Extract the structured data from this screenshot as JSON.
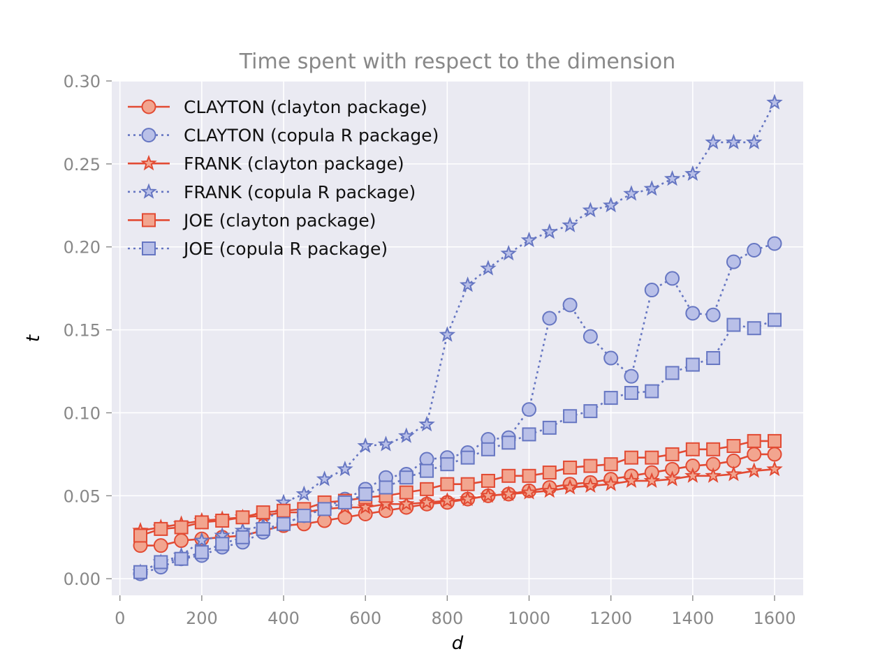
{
  "chart_data": {
    "type": "line",
    "title": "Time spent with respect to the dimension",
    "xlabel": "d",
    "ylabel": "t",
    "xlim": [
      -20,
      1670
    ],
    "ylim": [
      -0.01,
      0.3
    ],
    "x_ticks": [
      0,
      200,
      400,
      600,
      800,
      1000,
      1200,
      1400,
      1600
    ],
    "x_tick_labels": [
      "0",
      "200",
      "400",
      "600",
      "800",
      "1000",
      "1200",
      "1400",
      "1600"
    ],
    "y_ticks": [
      0.0,
      0.05,
      0.1,
      0.15,
      0.2,
      0.25,
      0.3
    ],
    "y_tick_labels": [
      "0.00",
      "0.05",
      "0.10",
      "0.15",
      "0.20",
      "0.25",
      "0.30"
    ],
    "grid": true,
    "legend_position": "top-left",
    "x": [
      50,
      100,
      150,
      200,
      250,
      300,
      350,
      400,
      450,
      500,
      550,
      600,
      650,
      700,
      750,
      800,
      850,
      900,
      950,
      1000,
      1050,
      1100,
      1150,
      1200,
      1250,
      1300,
      1350,
      1400,
      1450,
      1500,
      1550,
      1600
    ],
    "series": [
      {
        "name": "CLAYTON (clayton package)",
        "marker": "circle",
        "linestyle": "solid",
        "color": "#E24A33",
        "fill": "#F2A58F",
        "values": [
          0.02,
          0.02,
          0.023,
          0.024,
          0.025,
          0.026,
          0.029,
          0.032,
          0.033,
          0.035,
          0.037,
          0.039,
          0.041,
          0.043,
          0.045,
          0.046,
          0.048,
          0.05,
          0.051,
          0.053,
          0.055,
          0.057,
          0.058,
          0.06,
          0.062,
          0.064,
          0.066,
          0.068,
          0.069,
          0.071,
          0.075,
          0.075
        ]
      },
      {
        "name": "CLAYTON (copula R package)",
        "marker": "circle",
        "linestyle": "dotted",
        "color": "#6676C2",
        "fill": "#B9C0E8",
        "values": [
          0.003,
          0.007,
          0.012,
          0.014,
          0.019,
          0.022,
          0.028,
          0.033,
          0.038,
          0.043,
          0.048,
          0.054,
          0.061,
          0.063,
          0.072,
          0.073,
          0.076,
          0.084,
          0.085,
          0.102,
          0.157,
          0.165,
          0.146,
          0.133,
          0.122,
          0.174,
          0.181,
          0.16,
          0.159,
          0.191,
          0.198,
          0.202
        ]
      },
      {
        "name": "FRANK (clayton package)",
        "marker": "star",
        "linestyle": "solid",
        "color": "#E24A33",
        "fill": "#F2A58F",
        "values": [
          0.029,
          0.031,
          0.033,
          0.035,
          0.036,
          0.037,
          0.038,
          0.04,
          0.04,
          0.042,
          0.043,
          0.043,
          0.045,
          0.045,
          0.046,
          0.047,
          0.048,
          0.05,
          0.051,
          0.052,
          0.053,
          0.055,
          0.056,
          0.057,
          0.059,
          0.059,
          0.06,
          0.062,
          0.062,
          0.063,
          0.065,
          0.066
        ]
      },
      {
        "name": "FRANK (copula R package)",
        "marker": "star",
        "linestyle": "dotted",
        "color": "#6676C2",
        "fill": "#B9C0E8",
        "values": [
          0.004,
          0.01,
          0.014,
          0.023,
          0.026,
          0.029,
          0.032,
          0.046,
          0.051,
          0.06,
          0.066,
          0.08,
          0.081,
          0.086,
          0.093,
          0.147,
          0.177,
          0.187,
          0.196,
          0.204,
          0.209,
          0.213,
          0.222,
          0.225,
          0.232,
          0.235,
          0.241,
          0.244,
          0.263,
          0.263,
          0.263,
          0.287
        ]
      },
      {
        "name": "JOE (clayton package)",
        "marker": "square",
        "linestyle": "solid",
        "color": "#E24A33",
        "fill": "#F2A58F",
        "values": [
          0.026,
          0.03,
          0.031,
          0.034,
          0.035,
          0.037,
          0.04,
          0.041,
          0.042,
          0.046,
          0.047,
          0.049,
          0.05,
          0.052,
          0.054,
          0.057,
          0.057,
          0.059,
          0.062,
          0.062,
          0.064,
          0.067,
          0.068,
          0.069,
          0.073,
          0.073,
          0.075,
          0.078,
          0.078,
          0.08,
          0.083,
          0.083
        ]
      },
      {
        "name": "JOE (copula R package)",
        "marker": "square",
        "linestyle": "dotted",
        "color": "#6676C2",
        "fill": "#B9C0E8",
        "values": [
          0.004,
          0.01,
          0.012,
          0.016,
          0.021,
          0.025,
          0.03,
          0.033,
          0.038,
          0.042,
          0.046,
          0.051,
          0.055,
          0.061,
          0.065,
          0.069,
          0.073,
          0.078,
          0.082,
          0.087,
          0.091,
          0.098,
          0.101,
          0.109,
          0.112,
          0.113,
          0.124,
          0.129,
          0.133,
          0.153,
          0.151,
          0.156
        ]
      }
    ]
  }
}
